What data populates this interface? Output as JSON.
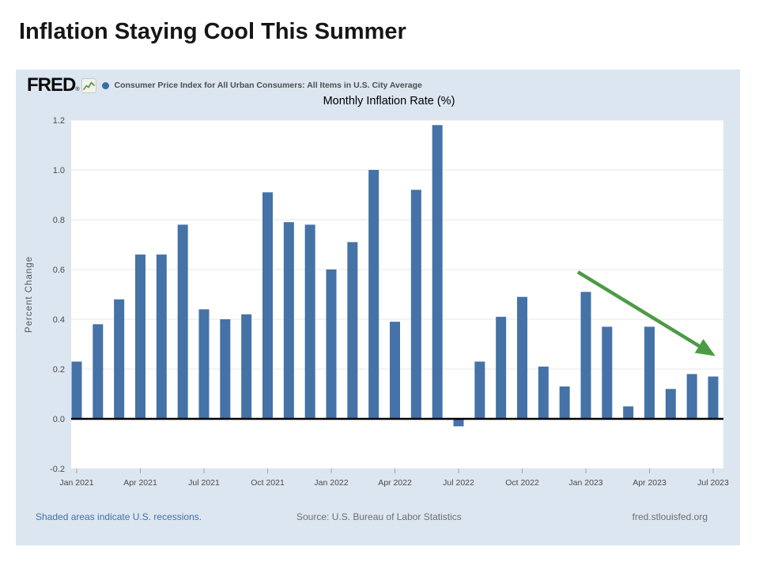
{
  "slide": {
    "title": "Inflation Staying Cool This Summer"
  },
  "fred_header": {
    "logo_text": "FRED",
    "registered_mark": "®",
    "legend_label": "Consumer Price Index for All Urban Consumers: All Items in U.S. City Average"
  },
  "subtitle": "Monthly Inflation Rate (%)",
  "footer": {
    "left": "Shaded areas indicate U.S. recessions.",
    "center": "Source: U.S. Bureau of Labor Statistics",
    "right": "fred.stlouisfed.org"
  },
  "colors": {
    "bar": "#4572a7",
    "container_bg": "#dce6f1",
    "plot_bg": "#ffffff",
    "legend_dot": "#3a6ca5",
    "arrow_green": "#4d9b45",
    "footer_blue": "#4470a6",
    "zero_line": "#000000",
    "gridline": "#e7e7e7",
    "axis_text": "#4a4a4a",
    "tick_mark": "#a0a0a0"
  },
  "chart_data": {
    "type": "bar",
    "title": "Monthly Inflation Rate (%)",
    "series_name": "Consumer Price Index for All Urban Consumers: All Items in U.S. City Average",
    "xlabel": "",
    "ylabel": "Percent Change",
    "ylim": [
      -0.2,
      1.2
    ],
    "grid": "horizontal",
    "legend_position": "top-left",
    "ytick_labels": [
      "1.2",
      "1.0",
      "0.8",
      "0.6",
      "0.4",
      "0.2",
      "0.0",
      "-0.2"
    ],
    "xtick_labels": [
      "Jan 2021",
      "Apr 2021",
      "Jul 2021",
      "Oct 2021",
      "Jan 2022",
      "Apr 2022",
      "Jul 2022",
      "Oct 2022",
      "Jan 2023",
      "Apr 2023",
      "Jul 2023"
    ],
    "xtick_every": 3,
    "categories": [
      "Jan 2021",
      "Feb 2021",
      "Mar 2021",
      "Apr 2021",
      "May 2021",
      "Jun 2021",
      "Jul 2021",
      "Aug 2021",
      "Sep 2021",
      "Oct 2021",
      "Nov 2021",
      "Dec 2021",
      "Jan 2022",
      "Feb 2022",
      "Mar 2022",
      "Apr 2022",
      "May 2022",
      "Jun 2022",
      "Jul 2022",
      "Aug 2022",
      "Sep 2022",
      "Oct 2022",
      "Nov 2022",
      "Dec 2022",
      "Jan 2023",
      "Feb 2023",
      "Mar 2023",
      "Apr 2023",
      "May 2023",
      "Jun 2023",
      "Jul 2023"
    ],
    "values": [
      0.23,
      0.38,
      0.48,
      0.66,
      0.66,
      0.78,
      0.44,
      0.4,
      0.42,
      0.91,
      0.79,
      0.78,
      0.6,
      0.71,
      1.0,
      0.39,
      0.92,
      1.18,
      -0.03,
      0.23,
      0.41,
      0.49,
      0.21,
      0.13,
      0.51,
      0.37,
      0.05,
      0.37,
      0.12,
      0.18,
      0.17
    ],
    "annotation_arrow": {
      "description": "green arrow pointing down-right over the 2023 bars",
      "from_category": "Jan 2023",
      "from_value": 0.59,
      "to_category": "Jul 2023",
      "to_value": 0.26
    }
  }
}
